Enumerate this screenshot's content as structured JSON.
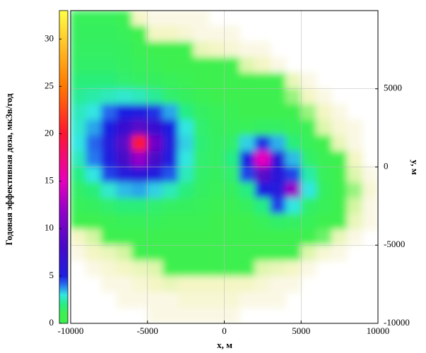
{
  "chart_data": {
    "type": "heatmap",
    "x_label": "x, м",
    "y_label": "y, м",
    "colorbar_label": "Годовая эффективная доза, мкЗв/год",
    "xlim": [
      -10000,
      10000
    ],
    "ylim": [
      -10000,
      10000
    ],
    "xticks": [
      -10000,
      -5000,
      0,
      5000,
      10000
    ],
    "yticks": [
      -10000,
      -5000,
      0,
      5000
    ],
    "clim": [
      0,
      33
    ],
    "cticks": [
      0,
      5,
      10,
      15,
      20,
      25,
      30
    ],
    "grid": true,
    "x": [
      -9500,
      -8500,
      -7500,
      -6500,
      -5500,
      -4500,
      -3500,
      -2500,
      -1500,
      -500,
      500,
      1500,
      2500,
      3500,
      4500,
      5500,
      6500,
      7500,
      8500,
      9500
    ],
    "y": [
      9500,
      8500,
      7500,
      6500,
      5500,
      4500,
      3500,
      2500,
      1500,
      500,
      -500,
      -1500,
      -2500,
      -3500,
      -4500,
      -5500,
      -6500,
      -7500,
      -8500,
      -9500
    ],
    "values": [
      [
        1.2,
        1.2,
        1.2,
        1.1,
        0.3,
        0.1,
        0.1,
        0.1,
        0.1,
        null,
        null,
        null,
        null,
        null,
        null,
        null,
        null,
        null,
        null,
        null
      ],
      [
        1.3,
        1.3,
        1.3,
        1.2,
        1,
        0.3,
        0.3,
        0.2,
        0.1,
        0.1,
        0.1,
        null,
        null,
        null,
        null,
        null,
        null,
        null,
        null,
        null
      ],
      [
        1.4,
        1.4,
        1.4,
        1.3,
        1.1,
        1,
        1,
        1,
        0.4,
        0.3,
        0.2,
        0.1,
        0.1,
        null,
        null,
        null,
        null,
        null,
        null,
        null
      ],
      [
        1.5,
        1.5,
        1.5,
        1.4,
        1.2,
        1.1,
        1,
        1,
        1,
        1,
        1,
        0.5,
        0.3,
        0.1,
        null,
        null,
        null,
        null,
        null,
        null
      ],
      [
        1.8,
        1.8,
        1.8,
        1.6,
        1.4,
        1.3,
        1.2,
        1.1,
        1,
        1,
        1,
        1,
        1,
        1,
        0.4,
        0.1,
        null,
        null,
        null,
        null
      ],
      [
        2.2,
        2.4,
        2.6,
        2.8,
        2.6,
        2.2,
        1.6,
        1.3,
        1.1,
        1,
        1,
        1,
        1,
        1,
        0.8,
        0.3,
        0.1,
        null,
        null,
        null
      ],
      [
        2.6,
        3,
        4.2,
        5,
        5.2,
        4.8,
        3.6,
        2,
        1.4,
        1.2,
        1.1,
        1,
        1,
        1,
        1,
        0.8,
        0.3,
        0.1,
        null,
        null
      ],
      [
        2.8,
        3.6,
        5,
        7,
        9,
        7,
        5,
        3,
        1.6,
        1.3,
        1.2,
        1.2,
        1.4,
        1.4,
        1.2,
        1.1,
        0.5,
        0.2,
        0.1,
        null
      ],
      [
        3,
        4.2,
        5.5,
        9,
        20,
        10,
        5.5,
        3.2,
        1.7,
        1.4,
        1.5,
        3.2,
        4.8,
        3.5,
        1.8,
        1.2,
        1,
        0.4,
        0.1,
        null
      ],
      [
        2.6,
        4,
        5.2,
        8,
        12,
        8,
        5.2,
        3,
        1.6,
        1.4,
        2,
        5,
        15,
        6,
        3.4,
        1.5,
        1.1,
        1,
        0.3,
        null
      ],
      [
        2,
        3,
        4.6,
        5.5,
        6,
        5.4,
        4.4,
        2.6,
        1.5,
        1.3,
        1.6,
        4.6,
        9,
        6,
        4.6,
        2.4,
        1.2,
        1,
        0.5,
        0.1
      ],
      [
        1.5,
        1.8,
        2.8,
        3.4,
        3.6,
        3.2,
        2.6,
        1.9,
        1.4,
        1.2,
        1.3,
        2,
        5,
        5.5,
        12,
        3,
        1.3,
        1,
        0.8,
        0.2
      ],
      [
        1.2,
        1.3,
        1.6,
        1.8,
        1.8,
        1.6,
        1.4,
        1.3,
        1.2,
        1.1,
        1.1,
        1.3,
        2,
        4.6,
        3,
        1.5,
        1.2,
        1,
        0.6,
        0.1
      ],
      [
        1,
        1,
        1.1,
        1.2,
        1.2,
        1.2,
        1.1,
        1.1,
        1.1,
        1,
        1,
        1,
        1.2,
        1.5,
        1.4,
        1.2,
        1,
        1,
        0.4,
        0.1
      ],
      [
        0.3,
        0.6,
        1,
        1,
        1,
        1,
        1,
        1,
        1,
        1,
        1,
        1,
        1,
        1,
        1,
        1,
        0.9,
        0.4,
        0.1,
        null
      ],
      [
        0.1,
        0.3,
        0.4,
        0.6,
        1,
        1,
        1,
        1,
        1,
        1,
        1,
        1,
        1,
        1,
        1,
        0.5,
        0.2,
        0.1,
        null,
        null
      ],
      [
        null,
        0.1,
        0.2,
        0.3,
        0.4,
        0.5,
        1,
        1,
        1,
        1,
        1,
        1,
        0.5,
        0.4,
        0.3,
        0.1,
        null,
        null,
        null,
        null
      ],
      [
        null,
        null,
        0.1,
        0.1,
        0.2,
        0.3,
        0.4,
        0.3,
        0.3,
        0.3,
        0.3,
        0.3,
        0.2,
        0.1,
        0.1,
        null,
        null,
        null,
        null,
        null
      ],
      [
        null,
        null,
        null,
        0.1,
        0.1,
        0.1,
        0.1,
        0.2,
        0.2,
        0.2,
        0.2,
        0.1,
        0.1,
        0.1,
        null,
        null,
        null,
        null,
        null,
        null
      ],
      [
        null,
        null,
        null,
        null,
        null,
        0.1,
        0.1,
        0.1,
        0.1,
        0.1,
        0.1,
        null,
        null,
        null,
        null,
        null,
        null,
        null,
        null,
        null
      ]
    ]
  }
}
